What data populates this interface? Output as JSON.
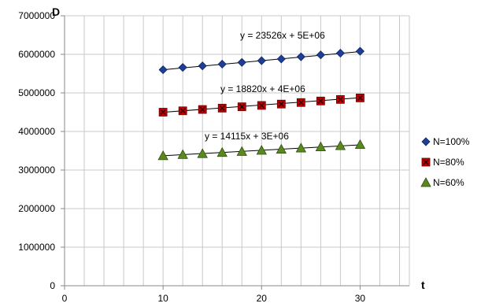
{
  "chart_data": {
    "type": "scatter",
    "title": "",
    "xlabel": "t",
    "ylabel": "D",
    "xlim": [
      0,
      35
    ],
    "ylim": [
      0,
      7000000
    ],
    "x_ticks": [
      0,
      10,
      20,
      30
    ],
    "x_tick_labels": [
      "0",
      "10",
      "20",
      "30"
    ],
    "y_ticks": [
      0,
      1000000,
      2000000,
      3000000,
      4000000,
      5000000,
      6000000,
      7000000
    ],
    "y_tick_labels": [
      "0",
      "1000000",
      "2000000",
      "3000000",
      "4000000",
      "5000000",
      "6000000",
      "7000000"
    ],
    "grid": true,
    "legend_position": "right",
    "x": [
      10,
      12,
      14,
      16,
      18,
      20,
      22,
      24,
      26,
      28,
      30
    ],
    "series": [
      {
        "name": "N=100%",
        "marker": "diamond",
        "color": "#1F3F96",
        "values": [
          5600000,
          5660000,
          5700000,
          5745000,
          5790000,
          5835000,
          5880000,
          5935000,
          5985000,
          6030000,
          6080000
        ],
        "trendline": {
          "slope": 23526,
          "intercept": 5365000,
          "equation": "y = 23526x + 5E+06"
        }
      },
      {
        "name": "N=80%",
        "marker": "square-x",
        "color": "#C00000",
        "values": [
          4500000,
          4535000,
          4570000,
          4605000,
          4640000,
          4675000,
          4710000,
          4750000,
          4790000,
          4830000,
          4870000
        ],
        "trendline": {
          "slope": 18820,
          "intercept": 4310000,
          "equation": "y = 18820x + 4E+06"
        }
      },
      {
        "name": "N=60%",
        "marker": "triangle",
        "color": "#5A8A1F",
        "values": [
          3370000,
          3400000,
          3425000,
          3455000,
          3480000,
          3510000,
          3540000,
          3570000,
          3600000,
          3630000,
          3660000
        ],
        "trendline": {
          "slope": 14115,
          "intercept": 3230000,
          "equation": "y = 14115x + 3E+06"
        }
      }
    ]
  }
}
